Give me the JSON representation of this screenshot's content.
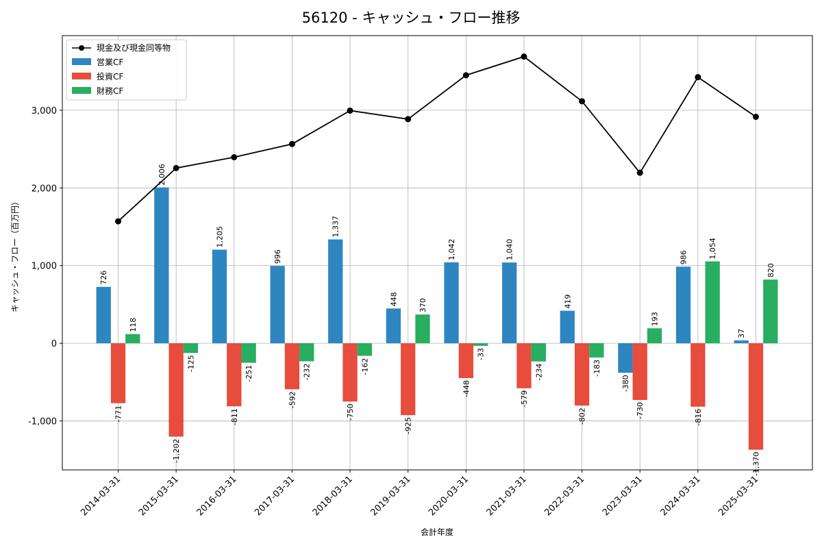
{
  "chart_data": {
    "type": "bar",
    "title": "56120 - キャッシュ・フロー推移",
    "xlabel": "会計年度",
    "ylabel": "キャッシュ・フロー（百万円）",
    "categories": [
      "2014-03-31",
      "2015-03-31",
      "2016-03-31",
      "2017-03-31",
      "2018-03-31",
      "2019-03-31",
      "2020-03-31",
      "2021-03-31",
      "2022-03-31",
      "2023-03-31",
      "2024-03-31",
      "2025-03-31"
    ],
    "ylim": [
      -1630,
      3960
    ],
    "yticks": [
      -1000,
      0,
      1000,
      2000,
      3000
    ],
    "ytick_labels": [
      "-1,000",
      "0",
      "1,000",
      "2,000",
      "3,000"
    ],
    "grid": true,
    "legend_position": "top-left",
    "series": [
      {
        "name": "営業CF",
        "kind": "bar",
        "color": "#2e86c1",
        "values": [
          726,
          2006,
          1205,
          996,
          1337,
          448,
          1042,
          1040,
          419,
          -380,
          986,
          37
        ],
        "labels": [
          "726",
          "2,006",
          "1,205",
          "996",
          "1,337",
          "448",
          "1,042",
          "1,040",
          "419",
          "-380",
          "986",
          "37"
        ]
      },
      {
        "name": "投資CF",
        "kind": "bar",
        "color": "#e74c3c",
        "values": [
          -771,
          -1202,
          -811,
          -592,
          -750,
          -925,
          -448,
          -579,
          -802,
          -730,
          -816,
          -1370
        ],
        "labels": [
          "-771",
          "-1,202",
          "-811",
          "-592",
          "-750",
          "-925",
          "-448",
          "-579",
          "-802",
          "-730",
          "-816",
          "-1,370"
        ]
      },
      {
        "name": "財務CF",
        "kind": "bar",
        "color": "#27ae60",
        "values": [
          118,
          -125,
          -251,
          -232,
          -162,
          370,
          -33,
          -234,
          -183,
          193,
          1054,
          820
        ],
        "labels": [
          "118",
          "-125",
          "-251",
          "-232",
          "-162",
          "370",
          "-33",
          "-234",
          "-183",
          "193",
          "1,054",
          "820"
        ]
      },
      {
        "name": "現金及び現金同等物",
        "kind": "line",
        "color": "#000000",
        "values": [
          1570,
          2255,
          2395,
          2565,
          2995,
          2885,
          3450,
          3690,
          3115,
          2195,
          3425,
          2915
        ]
      }
    ]
  }
}
